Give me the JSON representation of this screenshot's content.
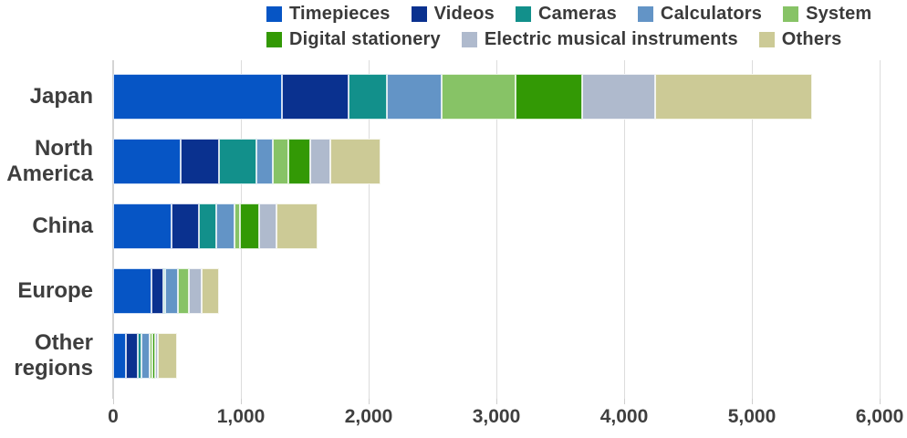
{
  "chart_data": {
    "type": "bar",
    "subtype": "horizontal-stacked",
    "categories": [
      "Japan",
      "North America",
      "China",
      "Europe",
      "Other regions"
    ],
    "series": [
      {
        "name": "Timepieces",
        "color": "#0655C5",
        "values": [
          1320,
          530,
          460,
          300,
          100
        ]
      },
      {
        "name": "Videos",
        "color": "#0A318F",
        "values": [
          520,
          300,
          210,
          90,
          90
        ]
      },
      {
        "name": "Cameras",
        "color": "#12908B",
        "values": [
          300,
          290,
          140,
          20,
          30
        ]
      },
      {
        "name": "Calculators",
        "color": "#6394C6",
        "values": [
          430,
          130,
          140,
          100,
          65
        ]
      },
      {
        "name": "System",
        "color": "#87C366",
        "values": [
          580,
          120,
          40,
          80,
          20
        ]
      },
      {
        "name": "Digital stationery",
        "color": "#339905",
        "values": [
          520,
          170,
          150,
          0,
          25
        ]
      },
      {
        "name": "Electric musical instruments",
        "color": "#AFBACD",
        "values": [
          570,
          160,
          140,
          100,
          20
        ]
      },
      {
        "name": "Others",
        "color": "#CCCA96",
        "values": [
          1230,
          390,
          320,
          140,
          150
        ]
      }
    ],
    "totals": [
      5470,
      2090,
      1600,
      830,
      500
    ],
    "xlim": [
      0,
      6000
    ],
    "x_ticks": [
      {
        "value": 0,
        "label": "0"
      },
      {
        "value": 1000,
        "label": "1,000"
      },
      {
        "value": 2000,
        "label": "2,000"
      },
      {
        "value": 3000,
        "label": "3,000"
      },
      {
        "value": 4000,
        "label": "4,000"
      },
      {
        "value": 5000,
        "label": "5,000"
      },
      {
        "value": 6000,
        "label": "6,000"
      }
    ],
    "grid": true,
    "legend_position": "top",
    "legend_rows": 2,
    "colors": {
      "grid_line": "#dcdcdc",
      "axis_line": "#d4d4d4",
      "label_text": "#3e3e3e",
      "legend_text": "#3a3a3a"
    }
  }
}
